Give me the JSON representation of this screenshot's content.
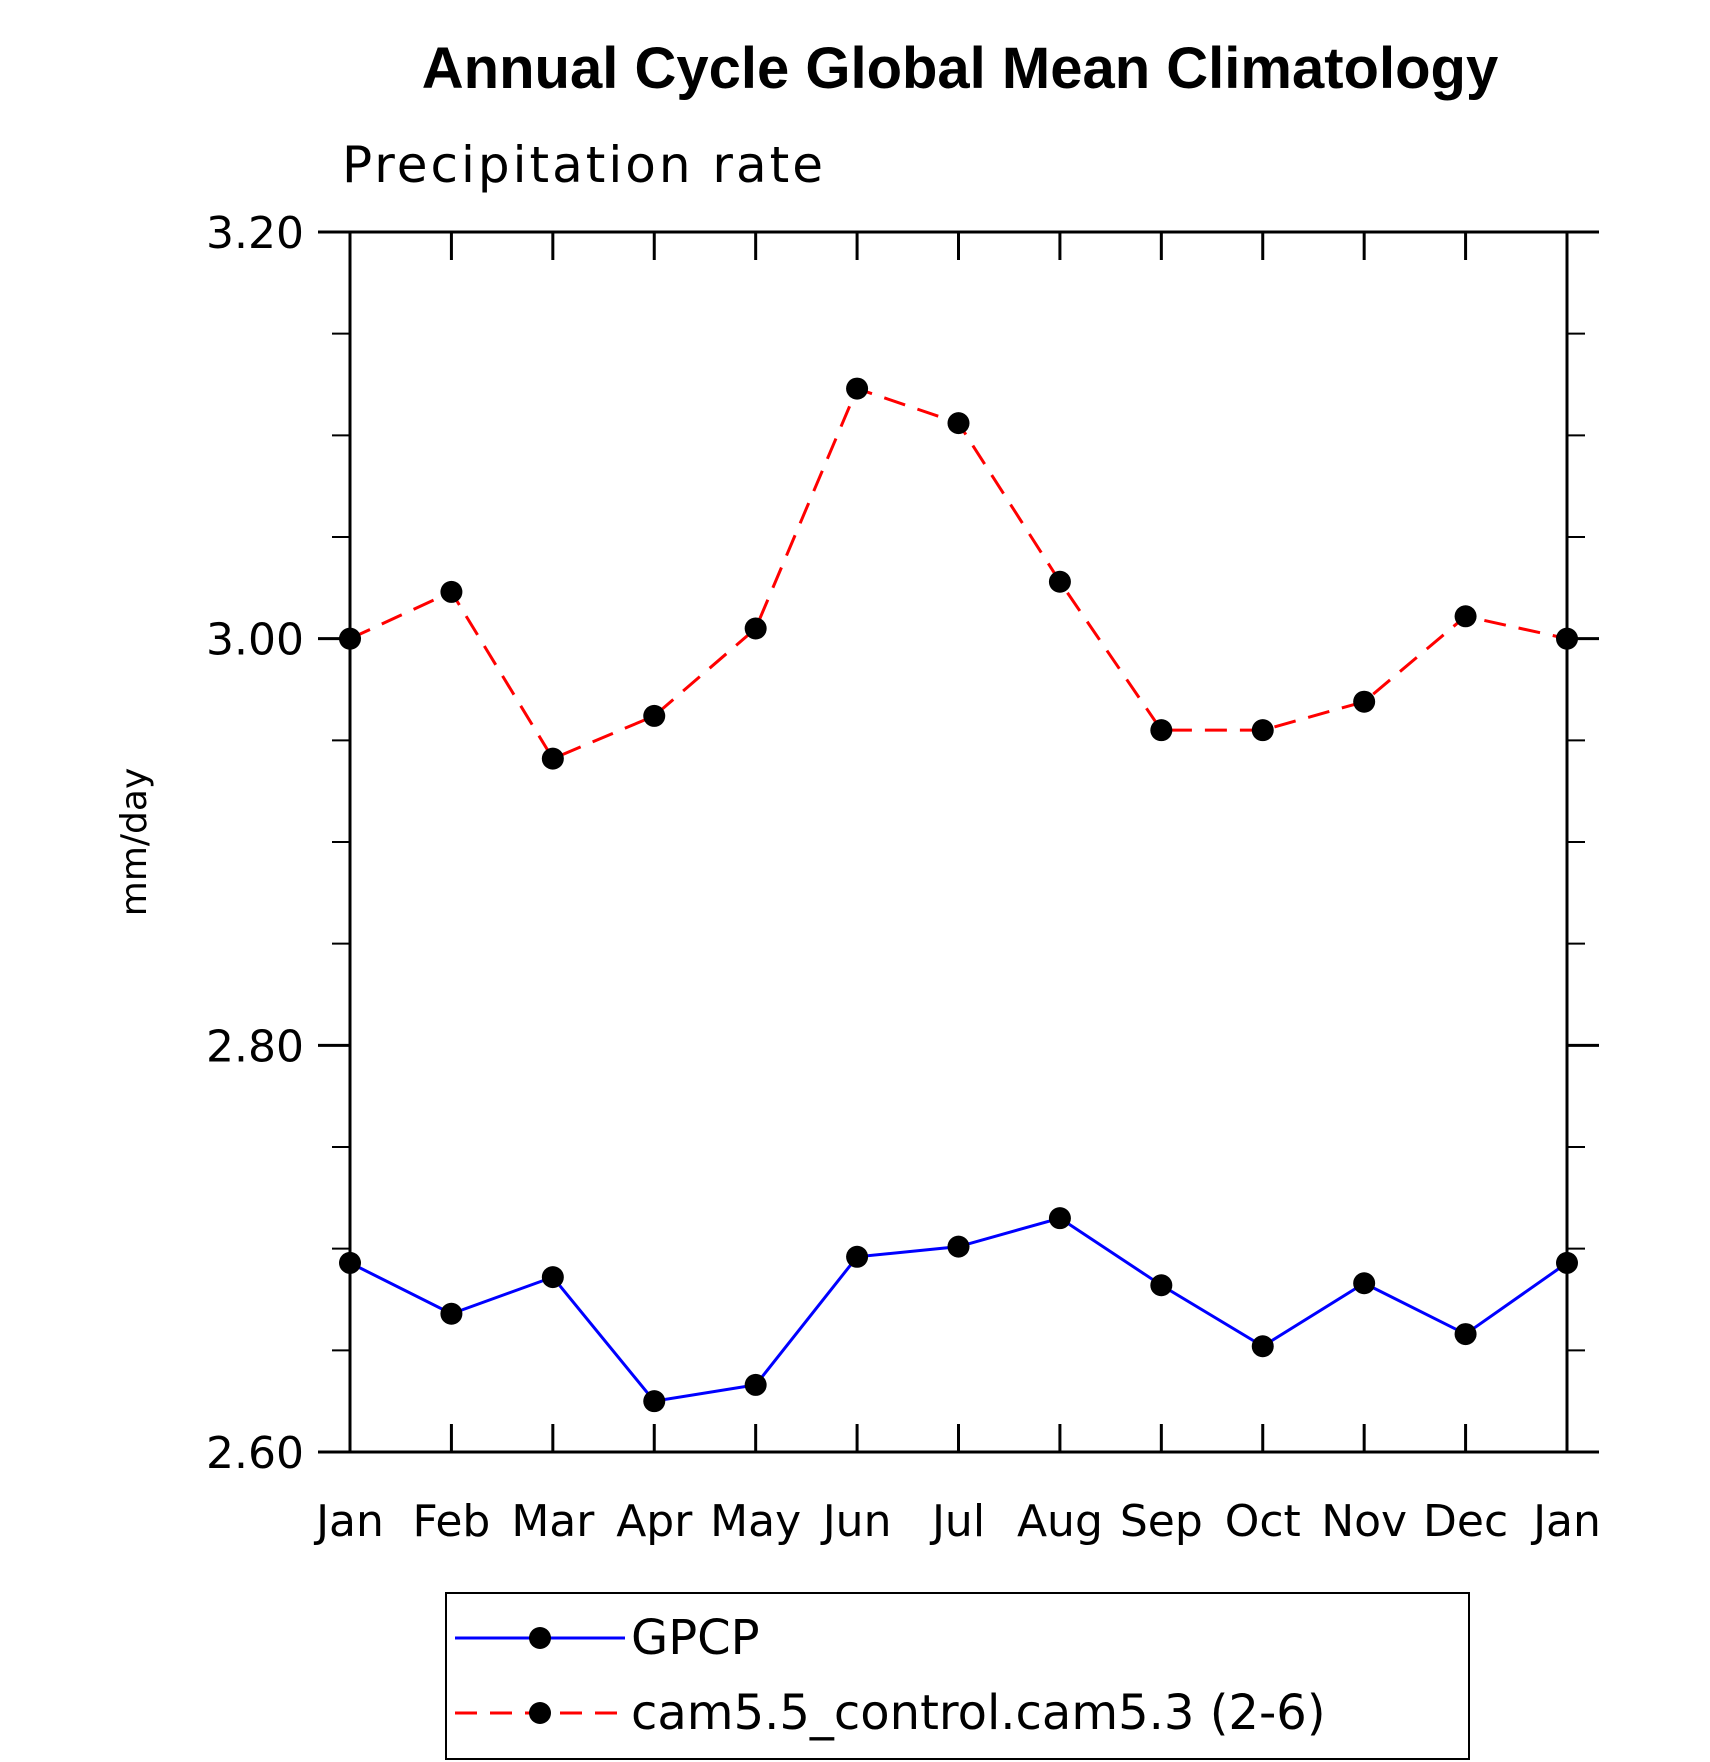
{
  "chart_data": {
    "type": "line",
    "title": "Annual Cycle Global Mean Climatology",
    "subtitle": "Precipitation rate",
    "ylabel": "mm/day",
    "ylim": [
      2.6,
      3.2
    ],
    "y_ticks": [
      "2.60",
      "2.80",
      "3.00",
      "3.20"
    ],
    "y_tick_values": [
      2.6,
      2.8,
      3.0,
      3.2
    ],
    "categories": [
      "Jan",
      "Feb",
      "Mar",
      "Apr",
      "May",
      "Jun",
      "Jul",
      "Aug",
      "Sep",
      "Oct",
      "Nov",
      "Dec",
      "Jan"
    ],
    "series": [
      {
        "name": "GPCP",
        "color": "#0000ff",
        "dash": "solid",
        "values": [
          2.693,
          2.668,
          2.686,
          2.625,
          2.633,
          2.696,
          2.701,
          2.715,
          2.682,
          2.652,
          2.683,
          2.658,
          2.693
        ]
      },
      {
        "name": "cam5.5_control.cam5.3 (2-6)",
        "color": "#ff0000",
        "dash": "dashed",
        "values": [
          3.0,
          3.023,
          2.941,
          2.962,
          3.005,
          3.123,
          3.106,
          3.028,
          2.955,
          2.955,
          2.969,
          3.011,
          3.0
        ]
      }
    ],
    "legend_position": "bottom-center",
    "grid": false
  }
}
